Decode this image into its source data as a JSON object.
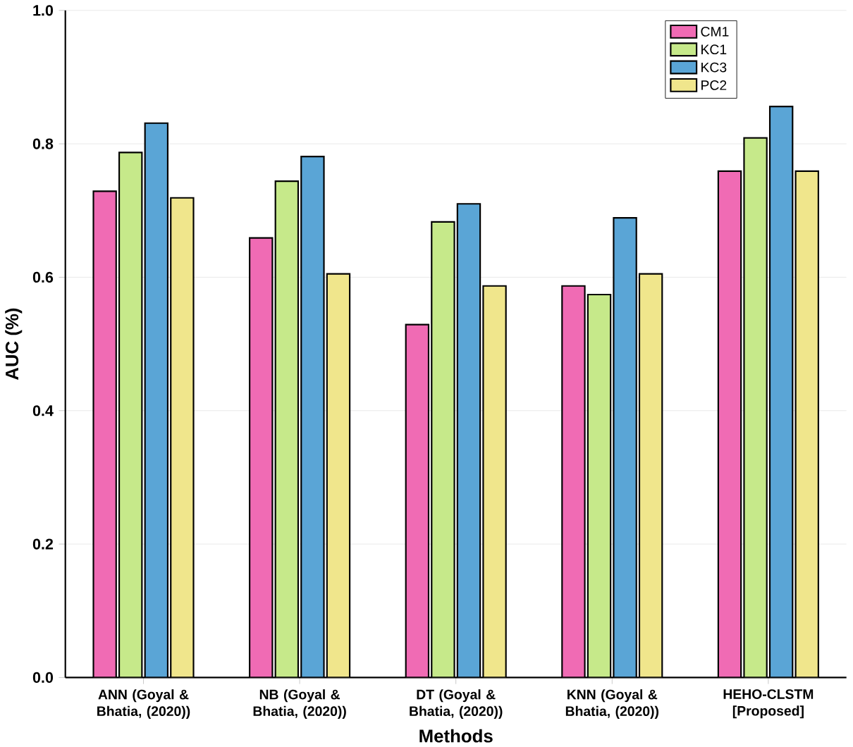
{
  "chart_data": {
    "type": "bar",
    "xlabel": "Methods",
    "ylabel": "AUC (%)",
    "categories": [
      "ANN (Goyal & Bhatia, (2020))",
      "NB (Goyal & Bhatia, (2020))",
      "DT (Goyal & Bhatia, (2020))",
      "KNN (Goyal & Bhatia, (2020))",
      "HEHO-CLSTM [Proposed]"
    ],
    "series": [
      {
        "name": "CM1",
        "color": "#f06bb4",
        "values": [
          0.729,
          0.659,
          0.529,
          0.587,
          0.759
        ]
      },
      {
        "name": "KC1",
        "color": "#c6e98a",
        "values": [
          0.787,
          0.744,
          0.683,
          0.574,
          0.809
        ]
      },
      {
        "name": "KC3",
        "color": "#5aa5d6",
        "values": [
          0.831,
          0.781,
          0.71,
          0.689,
          0.856
        ]
      },
      {
        "name": "PC2",
        "color": "#f0e68c",
        "values": [
          0.719,
          0.605,
          0.587,
          0.605,
          0.759
        ]
      }
    ],
    "ylim": [
      0,
      1.0
    ],
    "yticks": [
      {
        "value": 0,
        "label": "0.0"
      },
      0.2,
      0.4,
      0.6,
      0.8,
      {
        "value": 1,
        "label": "1.0"
      }
    ],
    "grid": "y",
    "legend": "top right"
  }
}
